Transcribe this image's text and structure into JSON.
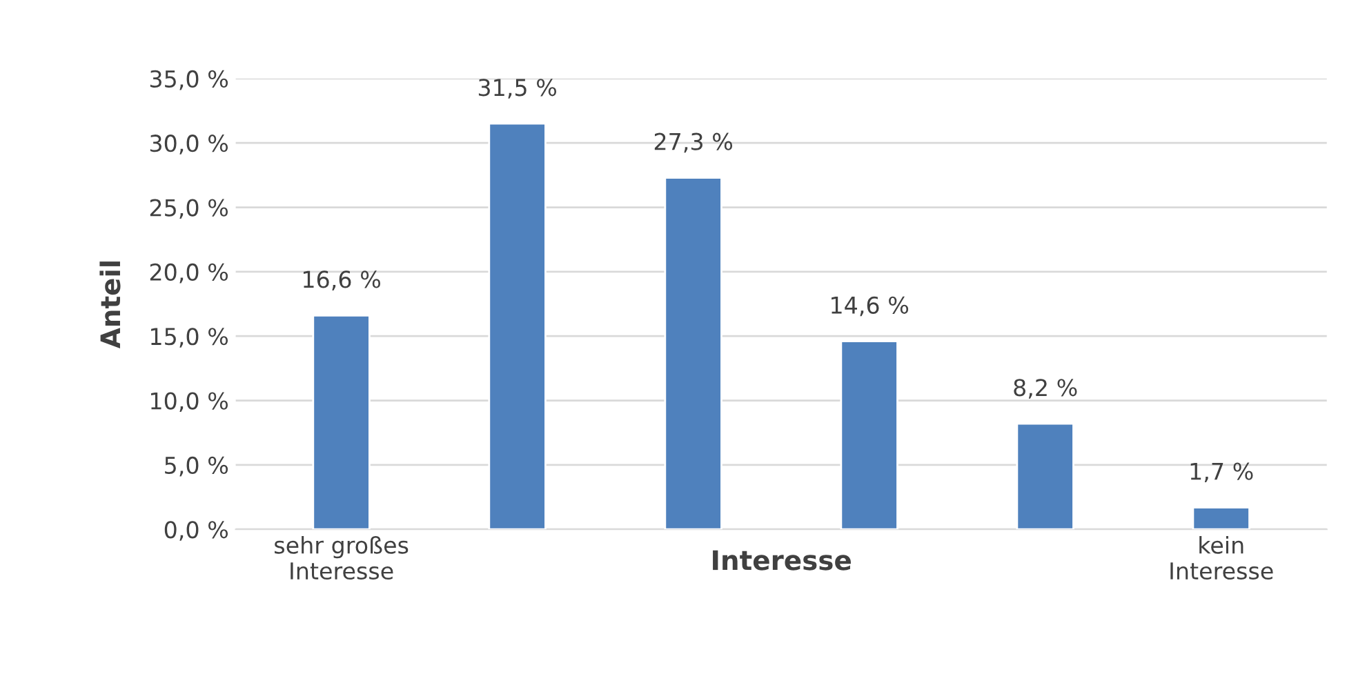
{
  "chart_data": {
    "type": "bar",
    "xlabel": "Interesse",
    "ylabel": "Anteil",
    "categories": [
      "sehr großes\nInteresse",
      null,
      null,
      null,
      null,
      "kein\nInteresse"
    ],
    "values": [
      16.6,
      31.5,
      27.3,
      14.6,
      8.2,
      1.7
    ],
    "value_labels": [
      "16,6 %",
      "31,5 %",
      "27,3 %",
      "14,6 %",
      "8,2 %",
      "1,7 %"
    ],
    "color": "#4f81bd",
    "ylim": [
      0,
      35
    ],
    "yticks": [
      {
        "value": 0,
        "label": "0,0 %"
      },
      {
        "value": 5,
        "label": "5,0 %"
      },
      {
        "value": 10,
        "label": "10,0 %"
      },
      {
        "value": 15,
        "label": "15,0 %"
      },
      {
        "value": 20,
        "label": "20,0 %"
      },
      {
        "value": 25,
        "label": "25,0 %"
      },
      {
        "value": 30,
        "label": "30,0 %"
      },
      {
        "value": 35,
        "label": "35,0 %"
      }
    ],
    "grid": "y"
  }
}
